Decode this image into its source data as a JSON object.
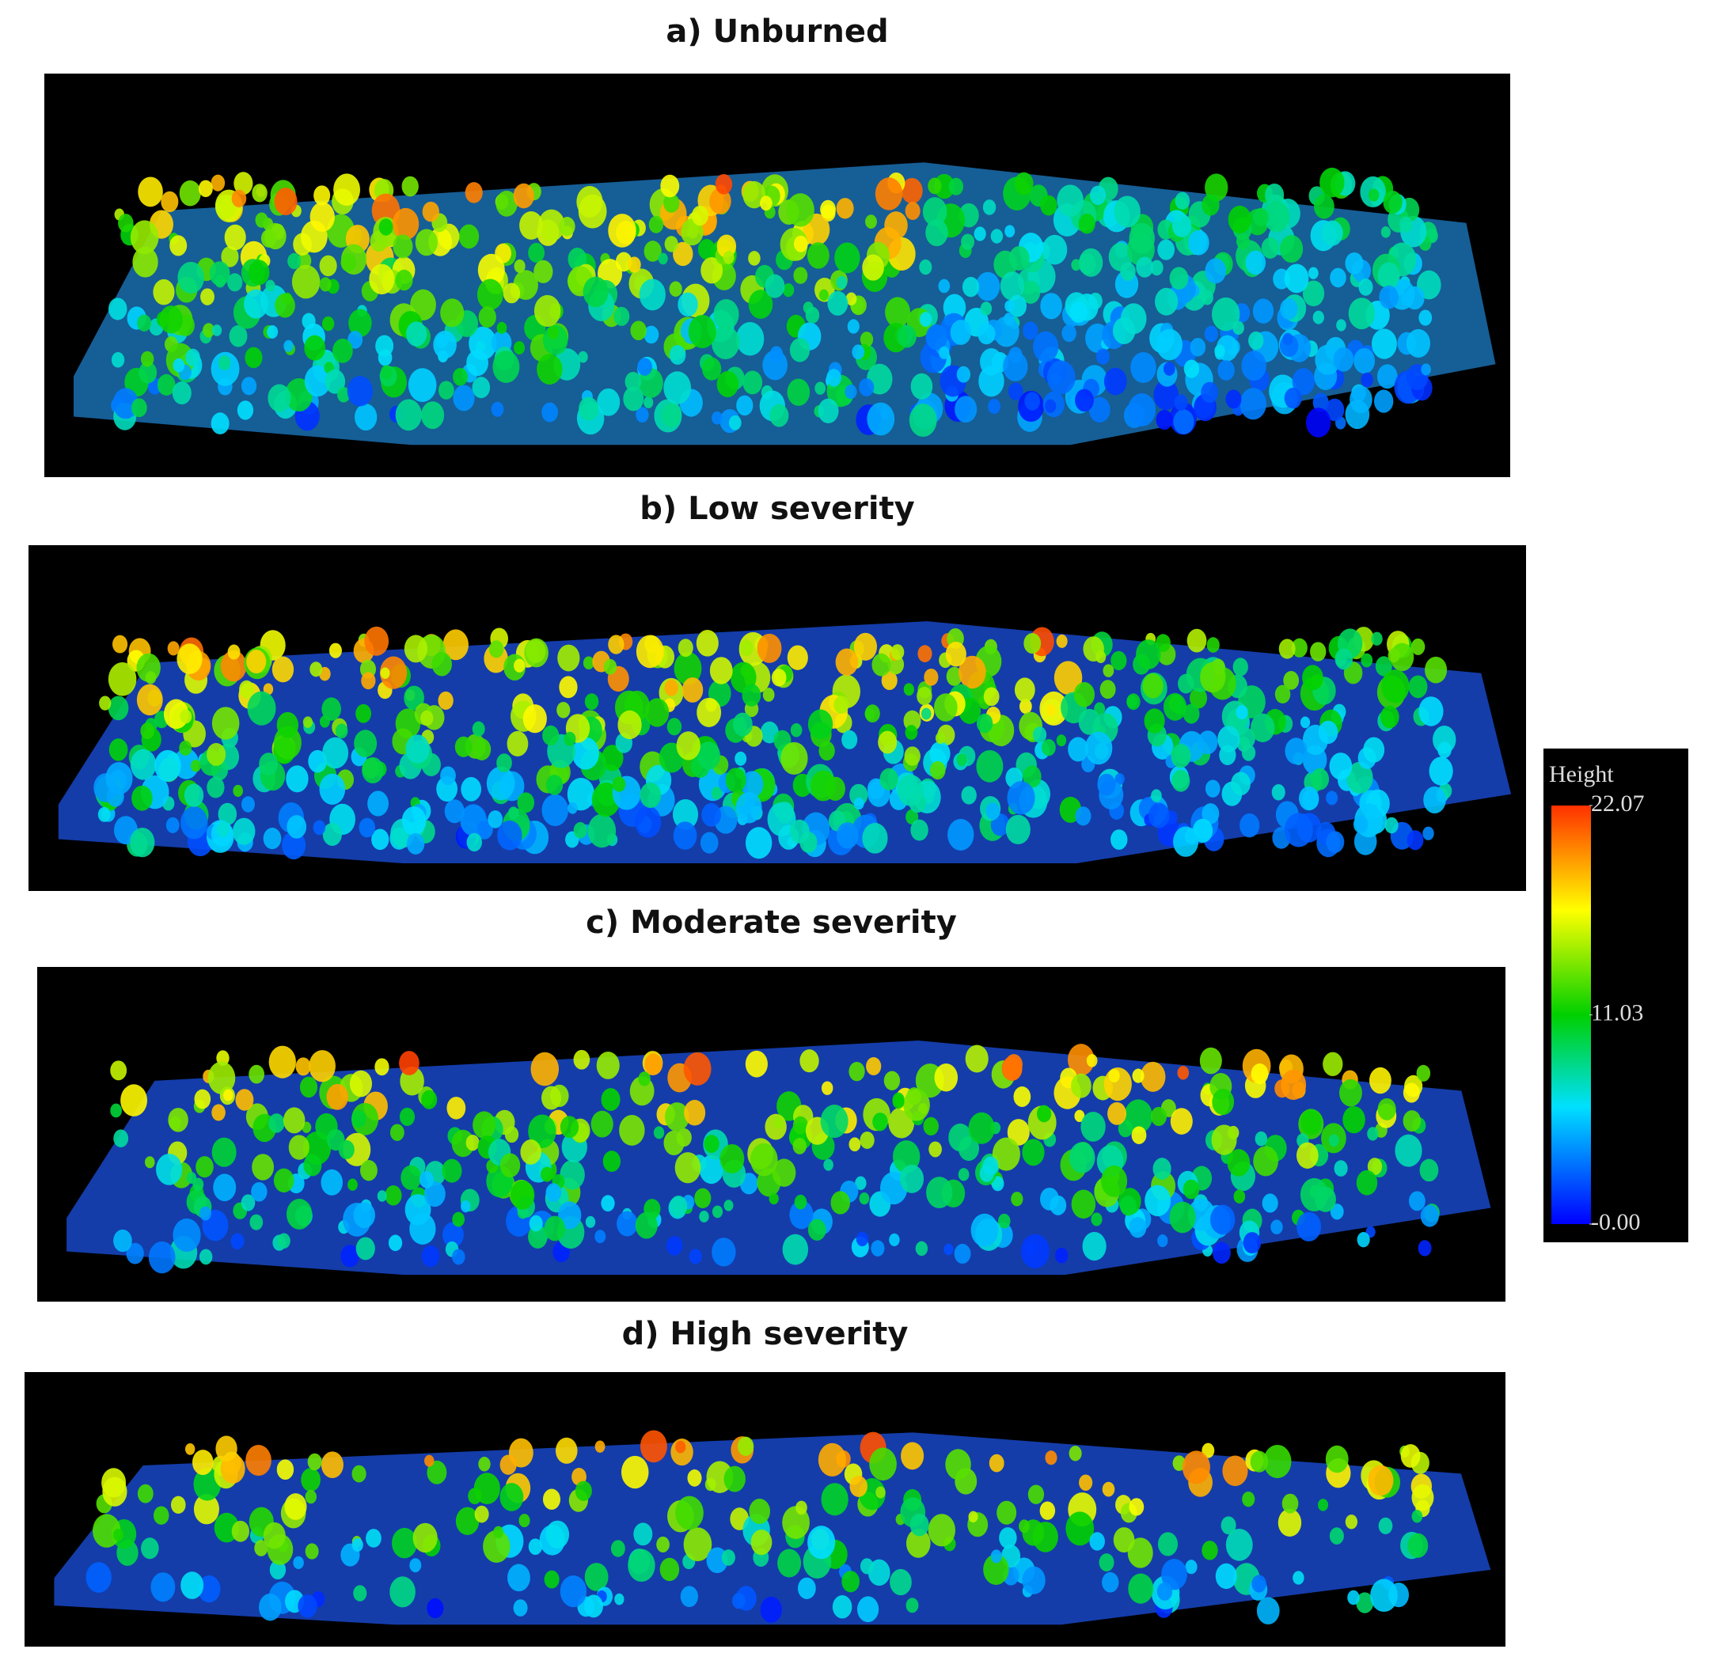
{
  "panels": [
    {
      "title": "a) Unburned"
    },
    {
      "title": "b) Low severity"
    },
    {
      "title": "c) Moderate severity"
    },
    {
      "title": "d) High severity"
    }
  ],
  "colorbar": {
    "label": "Height",
    "range": [
      0,
      22.07
    ],
    "ticks": [
      22.07,
      11.03,
      {
        "value": 0,
        "label": "-0.00"
      }
    ]
  }
}
